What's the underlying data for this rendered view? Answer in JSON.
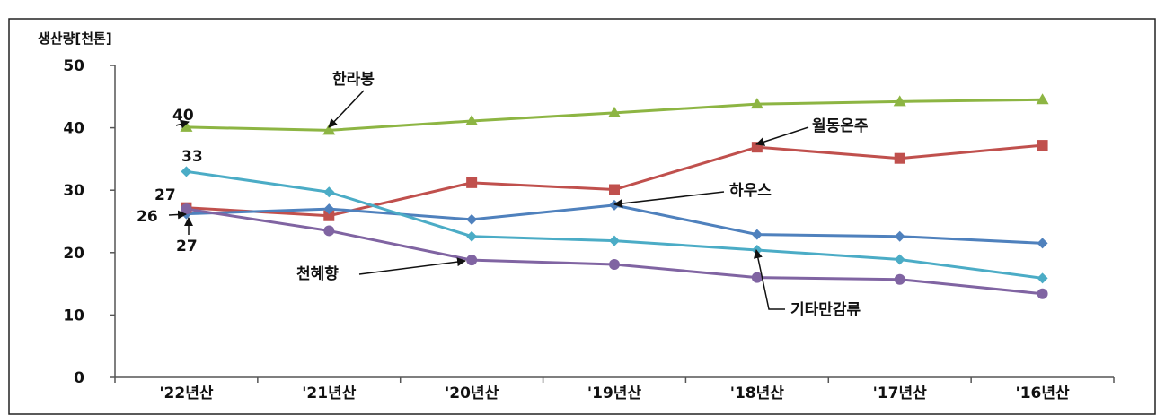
{
  "chart_data": {
    "type": "line",
    "ylabel": "생산량[천톤]",
    "xlabel": "",
    "title": "",
    "ylim": [
      0,
      50
    ],
    "yticks": [
      0,
      10,
      20,
      30,
      40,
      50
    ],
    "grid": false,
    "legend": "none (series labeled inline with arrows)",
    "categories": [
      "'22년산",
      "'21년산",
      "'20년산",
      "'19년산",
      "'18년산",
      "'17년산",
      "'16년산"
    ],
    "series": [
      {
        "name": "한라봉",
        "color": "#8db543",
        "marker": "triangle",
        "values": [
          40.1,
          39.6,
          41.1,
          42.4,
          43.8,
          44.2,
          44.5
        ]
      },
      {
        "name": "월동온주",
        "color": "#c0504d",
        "marker": "square",
        "values": [
          27.2,
          25.9,
          31.2,
          30.1,
          36.9,
          35.1,
          37.2
        ]
      },
      {
        "name": "하우스",
        "color": "#4f81bd",
        "marker": "diamond",
        "values": [
          26.2,
          27.0,
          25.3,
          27.6,
          22.9,
          22.6,
          21.5
        ]
      },
      {
        "name": "기타만감류",
        "color": "#4bacc6",
        "marker": "diamond",
        "values": [
          33.0,
          29.7,
          22.6,
          21.9,
          20.4,
          18.9,
          15.9
        ]
      },
      {
        "name": "천혜향",
        "color": "#8064a2",
        "marker": "circle",
        "values": [
          27.0,
          23.5,
          18.8,
          18.1,
          16.0,
          15.7,
          13.4
        ]
      }
    ],
    "data_labels": [
      "40",
      "33",
      "27",
      "26",
      "27"
    ],
    "annotations": [
      "한라봉",
      "월동온주",
      "하우스",
      "천혜향",
      "기타만감류"
    ]
  }
}
